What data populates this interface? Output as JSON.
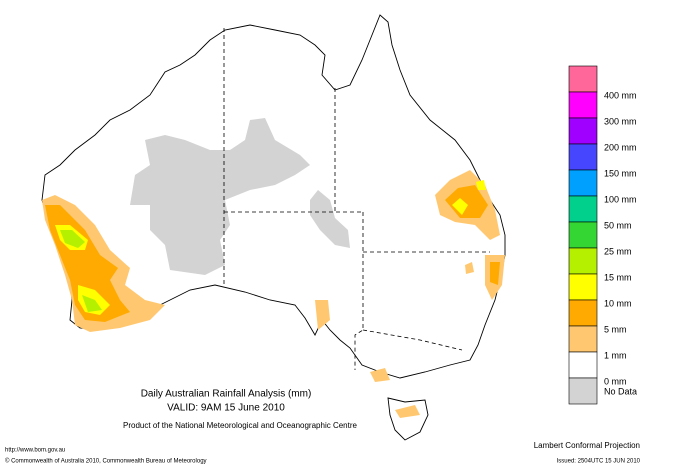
{
  "title": "Daily Australian Rainfall Analysis (mm)",
  "valid": "VALID: 9AM 15 June 2010",
  "product": "Product of the National Meteorological and Oceanographic Centre",
  "url": "http://www.bom.gov.au",
  "copyright": "© Commonwealth of Australia 2010, Commonwealth Bureau of Meteorology",
  "projection": "Lambert Conformal Projection",
  "issued": "Issued: 2504UTC 15 JUN 2010",
  "legend": {
    "colors": [
      "#ff6699",
      "#ff00ff",
      "#a000ff",
      "#4646ff",
      "#00a0ff",
      "#00d08c",
      "#33d633",
      "#b4f000",
      "#ffff00",
      "#ffaa00",
      "#ffc870",
      "#ffffff",
      "#d3d3d3"
    ],
    "labels": [
      "400 mm",
      "300 mm",
      "200 mm",
      "150 mm",
      "100 mm",
      "50 mm",
      "25 mm",
      "15 mm",
      "10 mm",
      "5 mm",
      "1 mm",
      "0 mm"
    ],
    "no_data": "No Data"
  }
}
